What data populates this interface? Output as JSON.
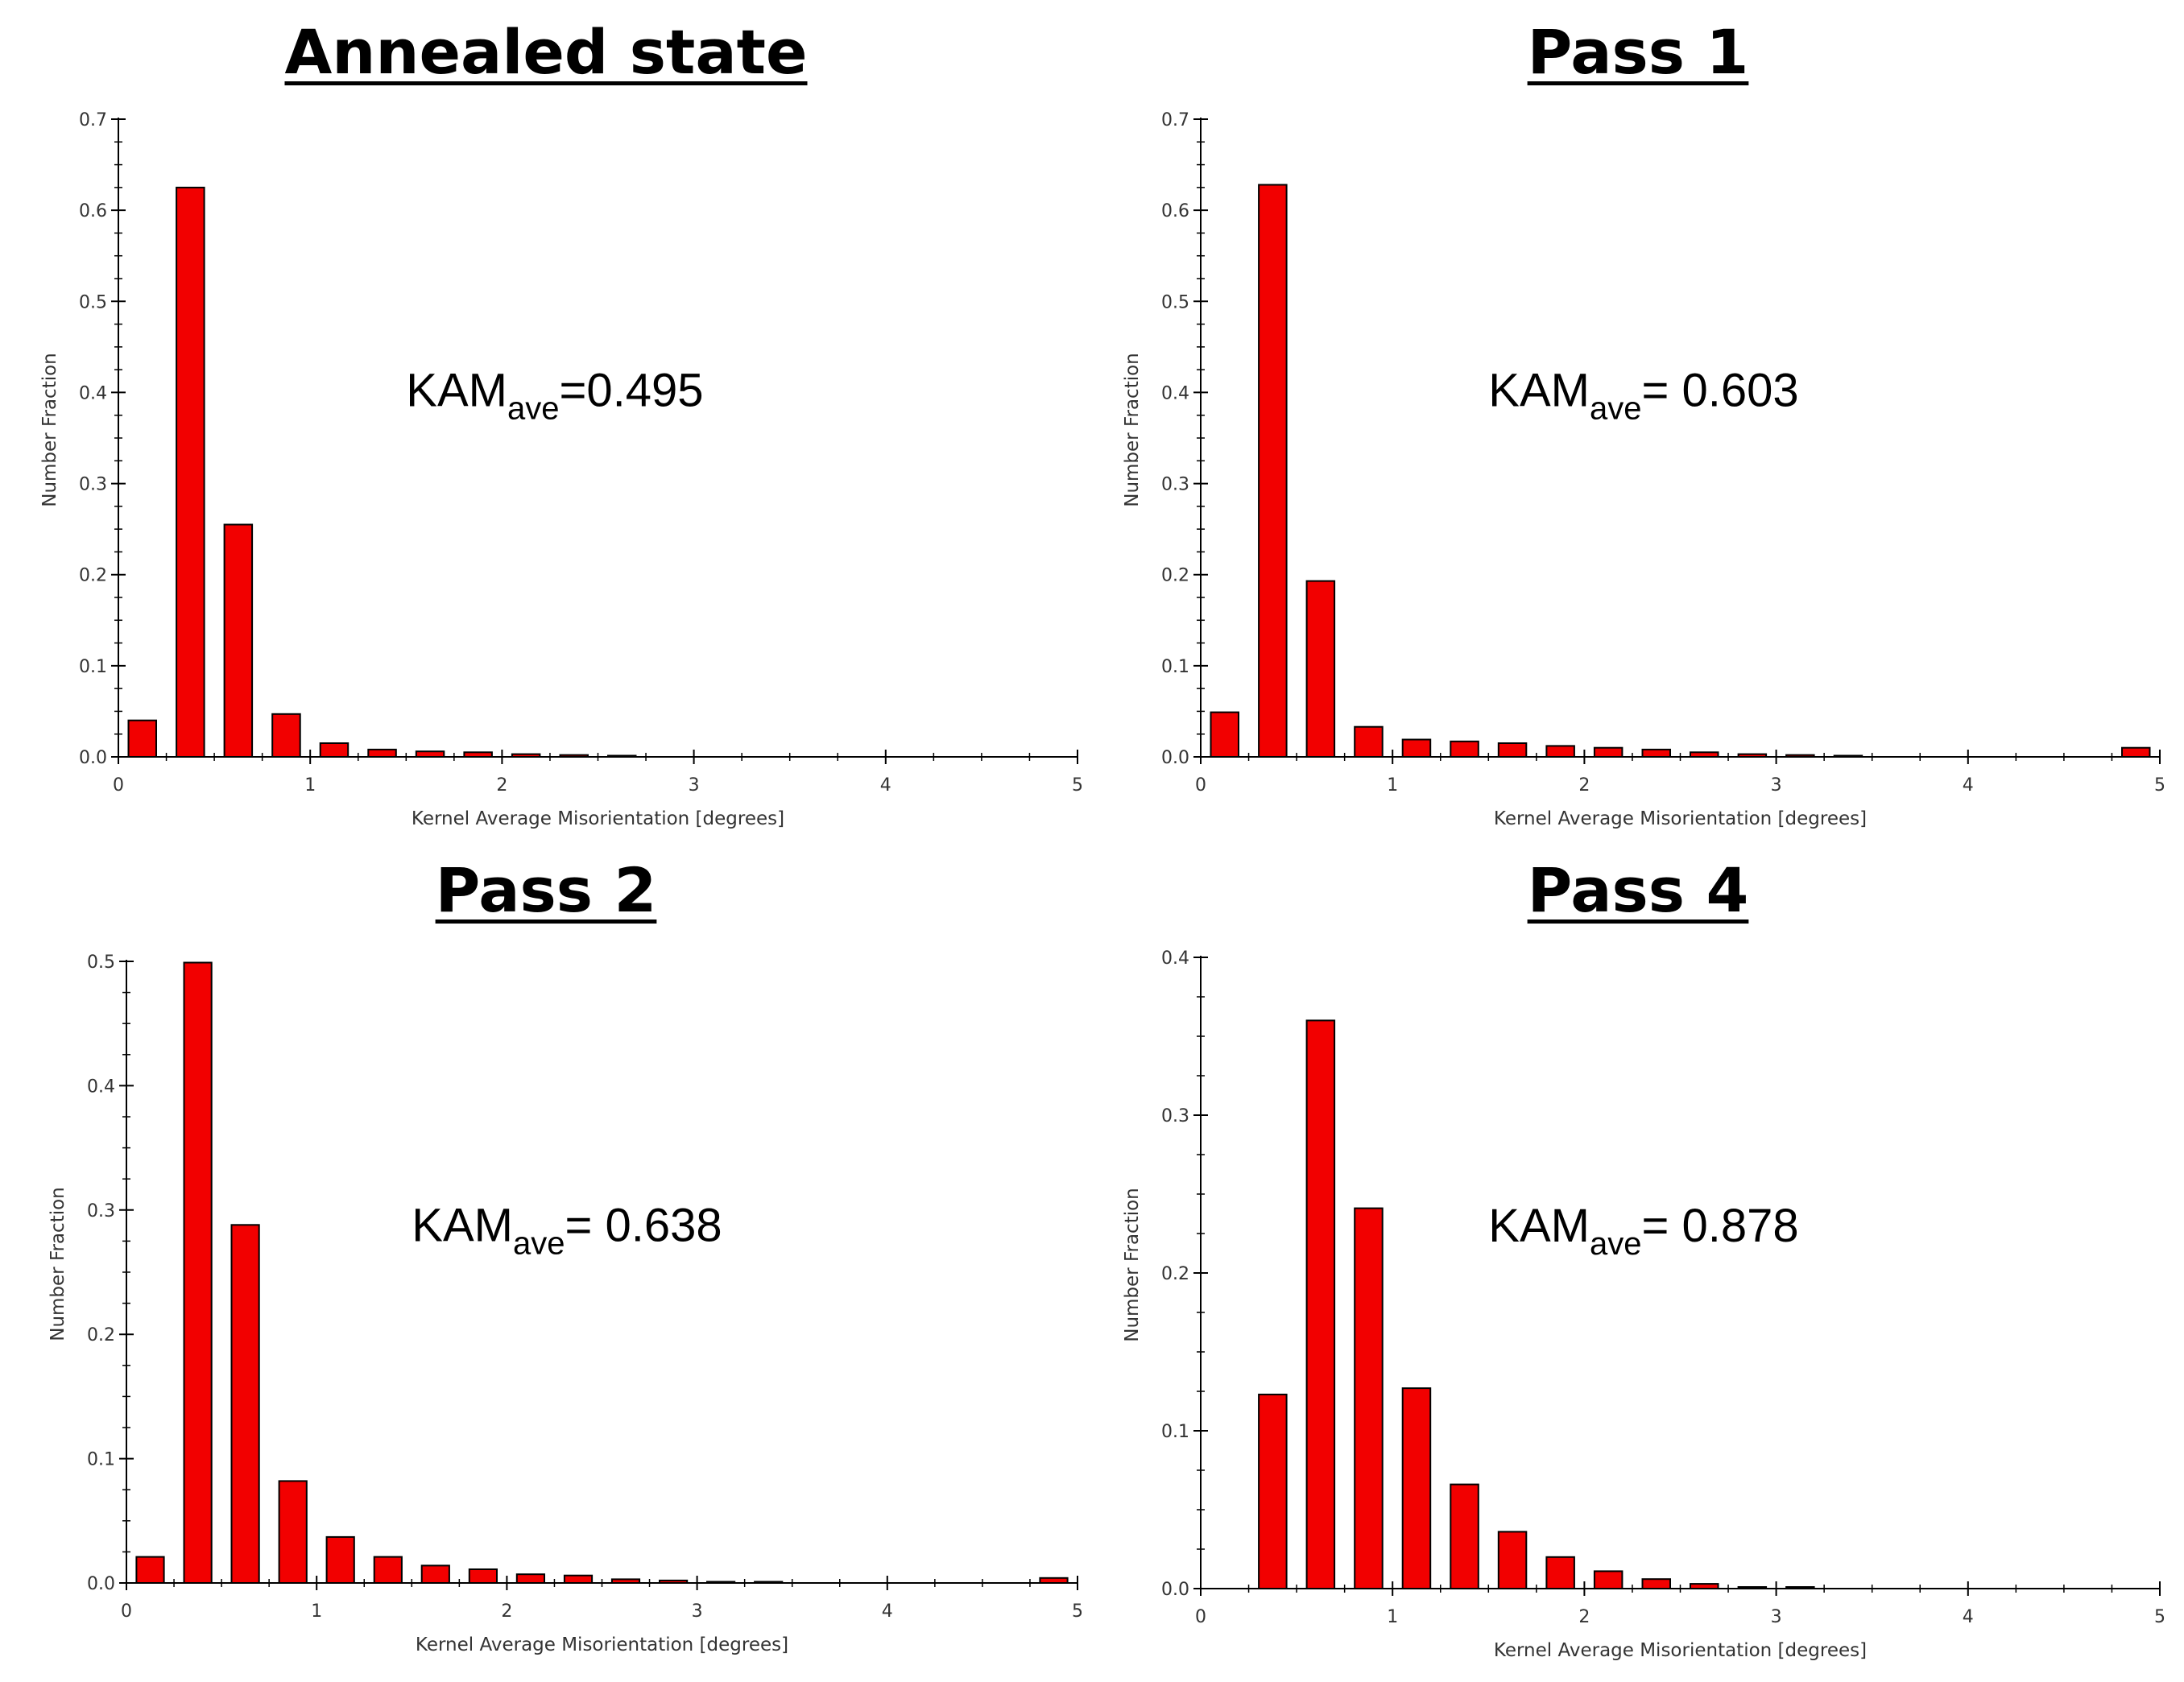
{
  "colors": {
    "bar_fill": "#f20000",
    "bar_stroke": "#000000",
    "axis": "#000000"
  },
  "chart_data": [
    {
      "type": "bar",
      "title": "Annealed state",
      "annotation": {
        "main": "KAM",
        "sub": "ave",
        "value": "=0.495"
      },
      "xlabel": "Kernel Average Misorientation [degrees]",
      "ylabel": "Number Fraction",
      "xlim": [
        0,
        5
      ],
      "ylim": [
        0,
        0.7
      ],
      "xticks": [
        "0",
        "1",
        "2",
        "3",
        "4",
        "5"
      ],
      "yticks": [
        "0.0",
        "0.1",
        "0.2",
        "0.3",
        "0.4",
        "0.5",
        "0.6",
        "0.7"
      ],
      "x": [
        0.125,
        0.375,
        0.625,
        0.875,
        1.125,
        1.375,
        1.625,
        1.875,
        2.125,
        2.375,
        2.625
      ],
      "values": [
        0.04,
        0.625,
        0.255,
        0.047,
        0.015,
        0.008,
        0.006,
        0.005,
        0.003,
        0.002,
        0.001
      ]
    },
    {
      "type": "bar",
      "title": "Pass 1",
      "annotation": {
        "main": "KAM",
        "sub": "ave",
        "value": "= 0.603"
      },
      "xlabel": "Kernel Average Misorientation [degrees]",
      "ylabel": "Number Fraction",
      "xlim": [
        0,
        5
      ],
      "ylim": [
        0,
        0.7
      ],
      "xticks": [
        "0",
        "1",
        "2",
        "3",
        "4",
        "5"
      ],
      "yticks": [
        "0.0",
        "0.1",
        "0.2",
        "0.3",
        "0.4",
        "0.5",
        "0.6",
        "0.7"
      ],
      "x": [
        0.125,
        0.375,
        0.625,
        0.875,
        1.125,
        1.375,
        1.625,
        1.875,
        2.125,
        2.375,
        2.625,
        2.875,
        3.125,
        3.375,
        4.875
      ],
      "values": [
        0.049,
        0.628,
        0.193,
        0.033,
        0.019,
        0.017,
        0.015,
        0.012,
        0.01,
        0.008,
        0.005,
        0.003,
        0.002,
        0.001,
        0.01
      ]
    },
    {
      "type": "bar",
      "title": "Pass 2",
      "annotation": {
        "main": "KAM",
        "sub": "ave",
        "value": "= 0.638"
      },
      "xlabel": "Kernel Average Misorientation [degrees]",
      "ylabel": "Number Fraction",
      "xlim": [
        0,
        5
      ],
      "ylim": [
        0,
        0.5
      ],
      "xticks": [
        "0",
        "1",
        "2",
        "3",
        "4",
        "5"
      ],
      "yticks": [
        "0.0",
        "0.1",
        "0.2",
        "0.3",
        "0.4",
        "0.5"
      ],
      "x": [
        0.125,
        0.375,
        0.625,
        0.875,
        1.125,
        1.375,
        1.625,
        1.875,
        2.125,
        2.375,
        2.625,
        2.875,
        3.125,
        3.375,
        4.875
      ],
      "values": [
        0.021,
        0.499,
        0.288,
        0.082,
        0.037,
        0.021,
        0.014,
        0.011,
        0.007,
        0.006,
        0.003,
        0.002,
        0.001,
        0.001,
        0.004
      ]
    },
    {
      "type": "bar",
      "title": "Pass 4",
      "annotation": {
        "main": "KAM",
        "sub": "ave",
        "value": "= 0.878"
      },
      "xlabel": "Kernel Average Misorientation [degrees]",
      "ylabel": "Number Fraction",
      "xlim": [
        0,
        5
      ],
      "ylim": [
        0,
        0.4
      ],
      "xticks": [
        "0",
        "1",
        "2",
        "3",
        "4",
        "5"
      ],
      "yticks": [
        "0.0",
        "0.1",
        "0.2",
        "0.3",
        "0.4"
      ],
      "x": [
        0.375,
        0.625,
        0.875,
        1.125,
        1.375,
        1.625,
        1.875,
        2.125,
        2.375,
        2.625,
        2.875,
        3.125
      ],
      "values": [
        0.123,
        0.36,
        0.241,
        0.127,
        0.066,
        0.036,
        0.02,
        0.011,
        0.006,
        0.003,
        0.001,
        0.001
      ]
    }
  ]
}
